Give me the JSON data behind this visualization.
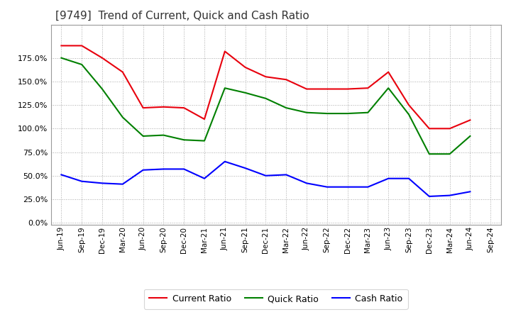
{
  "title": "[9749]  Trend of Current, Quick and Cash Ratio",
  "x_labels": [
    "Jun-19",
    "Sep-19",
    "Dec-19",
    "Mar-20",
    "Jun-20",
    "Sep-20",
    "Dec-20",
    "Mar-21",
    "Jun-21",
    "Sep-21",
    "Dec-21",
    "Mar-22",
    "Jun-22",
    "Sep-22",
    "Dec-22",
    "Mar-23",
    "Jun-23",
    "Sep-23",
    "Dec-23",
    "Mar-24",
    "Jun-24",
    "Sep-24"
  ],
  "current_ratio": [
    1.88,
    1.88,
    1.75,
    1.6,
    1.22,
    1.23,
    1.22,
    1.1,
    1.82,
    1.65,
    1.55,
    1.52,
    1.42,
    1.42,
    1.42,
    1.43,
    1.6,
    1.25,
    1.0,
    1.0,
    1.09,
    null
  ],
  "quick_ratio": [
    1.75,
    1.68,
    1.42,
    1.12,
    0.92,
    0.93,
    0.88,
    0.87,
    1.43,
    1.38,
    1.32,
    1.22,
    1.17,
    1.16,
    1.16,
    1.17,
    1.43,
    1.15,
    0.73,
    0.73,
    0.92,
    null
  ],
  "cash_ratio": [
    0.51,
    0.44,
    0.42,
    0.41,
    0.56,
    0.57,
    0.57,
    0.47,
    0.65,
    0.58,
    0.5,
    0.51,
    0.42,
    0.38,
    0.38,
    0.38,
    0.47,
    0.47,
    0.28,
    0.29,
    0.33,
    null
  ],
  "current_color": "#e8000d",
  "quick_color": "#008000",
  "cash_color": "#0000ff",
  "ylim_low": -0.02,
  "ylim_high": 2.1,
  "yticks": [
    0.0,
    0.25,
    0.5,
    0.75,
    1.0,
    1.25,
    1.5,
    1.75
  ],
  "background_color": "#ffffff",
  "grid_color": "#aaaaaa",
  "title_fontsize": 11,
  "legend_labels": [
    "Current Ratio",
    "Quick Ratio",
    "Cash Ratio"
  ],
  "line_width": 1.5
}
